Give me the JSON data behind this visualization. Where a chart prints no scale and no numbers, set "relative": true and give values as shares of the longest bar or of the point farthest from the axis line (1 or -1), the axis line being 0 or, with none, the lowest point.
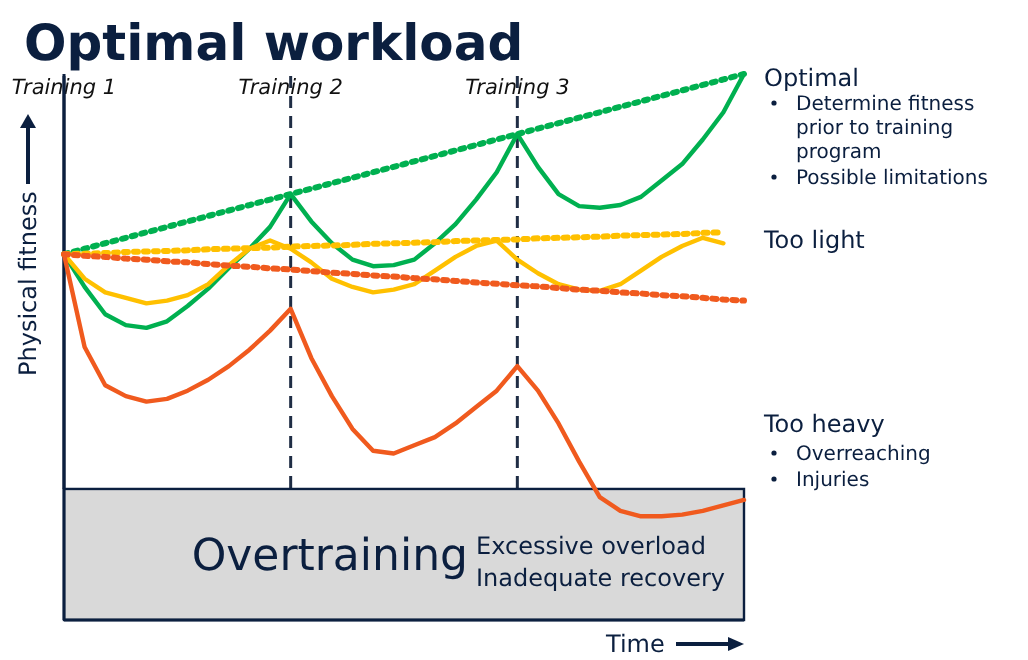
{
  "chart_data": {
    "type": "line",
    "relative": true,
    "title": "Optimal workload",
    "xlabel": "Time",
    "ylabel": "Physical fitness",
    "categories": [
      "Training 1",
      null,
      null,
      null,
      null,
      null,
      null,
      null,
      null,
      null,
      null,
      "Training 2",
      null,
      null,
      null,
      null,
      null,
      null,
      null,
      null,
      null,
      null,
      "Training 3",
      null,
      null,
      null,
      null,
      null,
      null,
      null,
      null,
      null,
      null,
      null
    ],
    "series": [
      {
        "name": "Optimal",
        "color": "#00b050",
        "line_style": "solid",
        "values": [
          0.67,
          0.61,
          0.56,
          0.54,
          0.535,
          0.547,
          0.575,
          0.607,
          0.645,
          0.68,
          0.72,
          0.78,
          0.73,
          0.69,
          0.66,
          0.648,
          0.65,
          0.66,
          0.69,
          0.725,
          0.77,
          0.82,
          0.89,
          0.83,
          0.78,
          0.758,
          0.755,
          0.76,
          0.775,
          0.805,
          0.835,
          0.88,
          0.93,
          1.0
        ]
      },
      {
        "color": "#00b050",
        "line_style": "dotted",
        "values": [
          0.67,
          0.68,
          0.69,
          0.7,
          0.71,
          0.72,
          0.73,
          0.74,
          0.75,
          0.76,
          0.77,
          0.78,
          0.79,
          0.8,
          0.81,
          0.82,
          0.83,
          0.84,
          0.85,
          0.86,
          0.87,
          0.88,
          0.89,
          0.9,
          0.91,
          0.92,
          0.93,
          0.94,
          0.95,
          0.96,
          0.97,
          0.98,
          0.99,
          1.0
        ]
      },
      {
        "name": "Too light",
        "color": "#ffc000",
        "line_style": "solid",
        "values": [
          0.67,
          0.625,
          0.6,
          0.59,
          0.58,
          0.585,
          0.595,
          0.615,
          0.65,
          0.68,
          0.695,
          0.68,
          0.655,
          0.625,
          0.61,
          0.6,
          0.605,
          0.615,
          0.64,
          0.665,
          0.685,
          0.695,
          0.66,
          0.635,
          0.615,
          0.605,
          0.603,
          0.615,
          0.64,
          0.665,
          0.685,
          0.7,
          0.69,
          null
        ]
      },
      {
        "color": "#ffc000",
        "line_style": "dotted",
        "values": [
          0.67,
          0.671,
          0.672,
          0.674,
          0.675,
          0.676,
          0.677,
          0.679,
          0.68,
          0.681,
          0.682,
          0.684,
          0.685,
          0.686,
          0.687,
          0.689,
          0.69,
          0.691,
          0.692,
          0.694,
          0.695,
          0.696,
          0.697,
          0.699,
          0.7,
          0.701,
          0.702,
          0.704,
          0.705,
          0.706,
          0.707,
          0.709,
          0.71,
          null
        ]
      },
      {
        "name": "Too heavy",
        "color": "#f05a1e",
        "line_style": "solid",
        "values": [
          0.67,
          0.5,
          0.43,
          0.41,
          0.4,
          0.405,
          0.42,
          0.44,
          0.465,
          0.495,
          0.53,
          0.57,
          0.48,
          0.41,
          0.35,
          0.31,
          0.305,
          0.32,
          0.335,
          0.36,
          0.39,
          0.42,
          0.465,
          0.42,
          0.36,
          0.29,
          0.225,
          0.2,
          0.19,
          0.19,
          0.193,
          0.2,
          0.21,
          0.22
        ]
      },
      {
        "color": "#f05a1e",
        "line_style": "dotted",
        "values": [
          0.67,
          0.667,
          0.665,
          0.662,
          0.66,
          0.657,
          0.655,
          0.652,
          0.649,
          0.647,
          0.644,
          0.642,
          0.639,
          0.636,
          0.634,
          0.631,
          0.629,
          0.626,
          0.624,
          0.621,
          0.618,
          0.616,
          0.613,
          0.611,
          0.608,
          0.605,
          0.603,
          0.6,
          0.598,
          0.595,
          0.593,
          0.59,
          0.587,
          0.585
        ]
      }
    ],
    "ref_lines": [
      {
        "axis": "x",
        "value": "Training 1",
        "line_style": "solid",
        "color": "#1f2d45"
      },
      {
        "axis": "x",
        "value": "Training 2",
        "line_style": "dashed",
        "color": "#1f2d45"
      },
      {
        "axis": "x",
        "value": "Training 3",
        "line_style": "dashed",
        "color": "#1f2d45"
      }
    ],
    "bands": [
      {
        "axis": "y",
        "from": 0,
        "to": 0.24,
        "label": "Overtraining",
        "color": "#d9d9d9"
      }
    ],
    "annotations": [
      "Determine fitness prior to training program",
      "Possible limitations",
      "Overreaching",
      "Injuries",
      "Excessive overload",
      "Inadequate recovery"
    ]
  }
}
